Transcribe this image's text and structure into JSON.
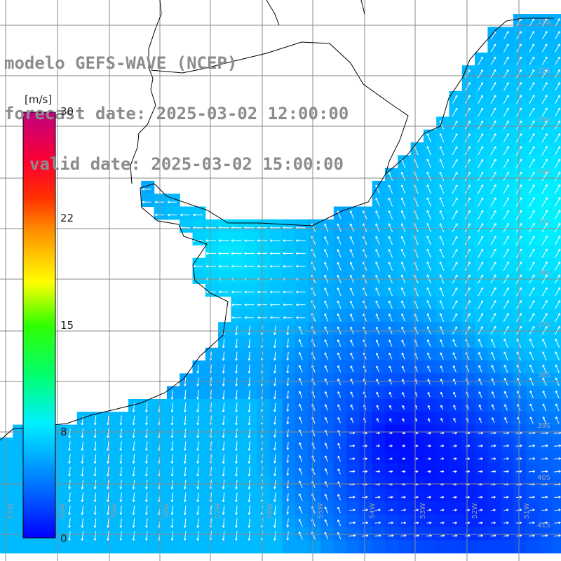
{
  "title": {
    "line1": "modelo GEFS-WAVE (NCEP)",
    "line2": "forecast date: 2025-03-02 12:00:00",
    "line3": "valid date: 2025-03-02 15:00:00"
  },
  "colorbar": {
    "units": "[m/s]",
    "ticks": [
      "30",
      "22",
      "15",
      "8",
      "0"
    ],
    "tick_values": [
      30,
      22,
      15,
      8,
      0
    ],
    "min": 0,
    "max": 30,
    "colors": [
      "#0000ff",
      "#008cff",
      "#00e6ff",
      "#00ff66",
      "#a0ff00",
      "#ffff00",
      "#ffa000",
      "#ff4000",
      "#ff0000",
      "#ff0066",
      "#c0007a"
    ]
  },
  "axes": {
    "lon_labels": [
      "61W",
      "60W",
      "59W",
      "58W",
      "57W",
      "56W",
      "55W",
      "54W",
      "53W",
      "52W",
      "51W"
    ],
    "lat_labels": [
      "31S",
      "32S",
      "33S",
      "34S",
      "35S",
      "36S",
      "37S",
      "38S",
      "39S",
      "40S",
      "41S"
    ]
  },
  "colors": {
    "land": "#ffffff",
    "coast": "#000000",
    "grid": "#888888",
    "arrows": "#ffffff"
  }
}
